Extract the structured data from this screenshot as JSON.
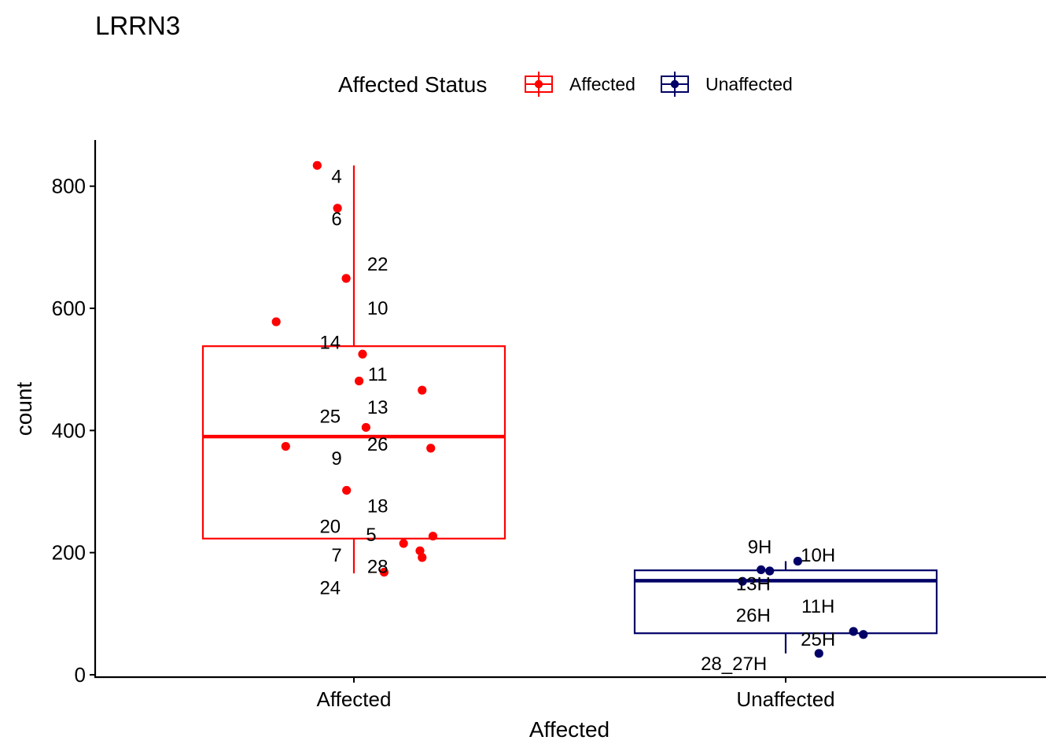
{
  "chart_data": {
    "type": "box",
    "title": "LRRN3",
    "xlabel": "Affected",
    "ylabel": "count",
    "ylim": [
      0,
      875
    ],
    "yticks": [
      0,
      200,
      400,
      600,
      800
    ],
    "categories": [
      "Affected",
      "Unaffected"
    ],
    "legend": {
      "title": "Affected Status",
      "position": "top",
      "entries": [
        {
          "label": "Affected",
          "color": "#FF0000"
        },
        {
          "label": "Unaffected",
          "color": "#000066"
        }
      ]
    },
    "groups": [
      {
        "name": "Affected",
        "color": "#FF0000",
        "box": {
          "min": 166,
          "q1": 223,
          "median": 390,
          "q3": 538,
          "max": 834
        },
        "points": [
          {
            "x": -0.085,
            "y": 834
          },
          {
            "x": -0.038,
            "y": 764
          },
          {
            "x": -0.018,
            "y": 649
          },
          {
            "x": -0.18,
            "y": 578
          },
          {
            "x": 0.02,
            "y": 525
          },
          {
            "x": 0.012,
            "y": 481
          },
          {
            "x": 0.158,
            "y": 466
          },
          {
            "x": 0.028,
            "y": 405
          },
          {
            "x": -0.158,
            "y": 374
          },
          {
            "x": 0.178,
            "y": 371
          },
          {
            "x": -0.017,
            "y": 302
          },
          {
            "x": 0.183,
            "y": 227
          },
          {
            "x": 0.115,
            "y": 215
          },
          {
            "x": 0.153,
            "y": 203
          },
          {
            "x": 0.158,
            "y": 192
          },
          {
            "x": 0.07,
            "y": 168
          }
        ],
        "labels": [
          {
            "text": "4",
            "x": -0.04,
            "y": 816
          },
          {
            "text": "6",
            "x": -0.04,
            "y": 746
          },
          {
            "text": "22",
            "x": 0.055,
            "y": 672
          },
          {
            "text": "10",
            "x": 0.055,
            "y": 600
          },
          {
            "text": "14",
            "x": -0.055,
            "y": 544
          },
          {
            "text": "11",
            "x": 0.055,
            "y": 492
          },
          {
            "text": "13",
            "x": 0.055,
            "y": 438
          },
          {
            "text": "25",
            "x": -0.055,
            "y": 423
          },
          {
            "text": "26",
            "x": 0.055,
            "y": 377
          },
          {
            "text": "9",
            "x": -0.04,
            "y": 354
          },
          {
            "text": "18",
            "x": 0.055,
            "y": 276
          },
          {
            "text": "20",
            "x": -0.055,
            "y": 243
          },
          {
            "text": "5",
            "x": 0.04,
            "y": 229
          },
          {
            "text": "7",
            "x": -0.04,
            "y": 196
          },
          {
            "text": "28",
            "x": 0.055,
            "y": 177
          },
          {
            "text": "24",
            "x": -0.055,
            "y": 142
          }
        ]
      },
      {
        "name": "Unaffected",
        "color": "#000066",
        "box": {
          "min": 35,
          "q1": 68,
          "median": 154,
          "q3": 171,
          "max": 186
        },
        "points": [
          {
            "x": -0.1,
            "y": 153
          },
          {
            "x": -0.057,
            "y": 172
          },
          {
            "x": -0.037,
            "y": 170
          },
          {
            "x": 0.028,
            "y": 186
          },
          {
            "x": 0.077,
            "y": 35
          },
          {
            "x": 0.157,
            "y": 71
          },
          {
            "x": 0.18,
            "y": 66
          }
        ],
        "labels": [
          {
            "text": "9H",
            "x": -0.06,
            "y": 209
          },
          {
            "text": "10H",
            "x": 0.075,
            "y": 196
          },
          {
            "text": "13H",
            "x": -0.075,
            "y": 149
          },
          {
            "text": "11H",
            "x": 0.075,
            "y": 112
          },
          {
            "text": "26H",
            "x": -0.075,
            "y": 97
          },
          {
            "text": "25H",
            "x": 0.075,
            "y": 58
          },
          {
            "text": "28_27H",
            "x": -0.12,
            "y": 18
          }
        ]
      }
    ]
  }
}
